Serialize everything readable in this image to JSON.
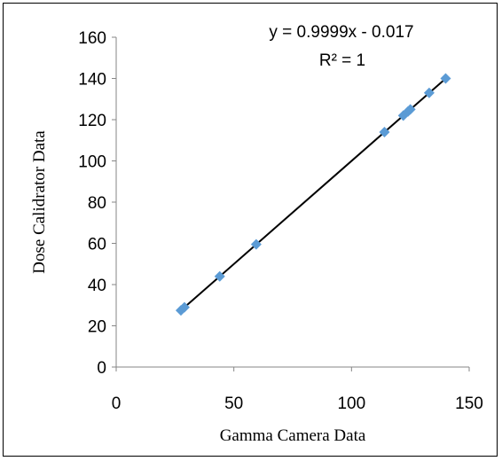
{
  "chart_data": {
    "type": "scatter",
    "xlabel": "Gamma Camera Data",
    "ylabel": "Dose Calidrator Data",
    "xlim": [
      0,
      150
    ],
    "ylim": [
      0,
      160
    ],
    "xticks": [
      "0",
      "50",
      "100",
      "150"
    ],
    "yticks": [
      "0",
      "20",
      "40",
      "60",
      "80",
      "100",
      "120",
      "140",
      "160"
    ],
    "grid": false,
    "legend": "none",
    "marker_color": "#5b9bd5",
    "trendline_color": "#000000",
    "series": [
      {
        "x": [
          27.5,
          29,
          44,
          59.5,
          114,
          122,
          124,
          125,
          133,
          140
        ],
        "y": [
          27.5,
          29,
          44,
          59.5,
          114,
          122,
          124,
          125,
          133,
          140
        ]
      }
    ],
    "trendline": {
      "slope": 0.9999,
      "intercept": -0.017,
      "x_range": [
        27.5,
        140
      ],
      "equation_label": "y = 0.9999x - 0.017",
      "r2_label": "R² = 1"
    }
  }
}
